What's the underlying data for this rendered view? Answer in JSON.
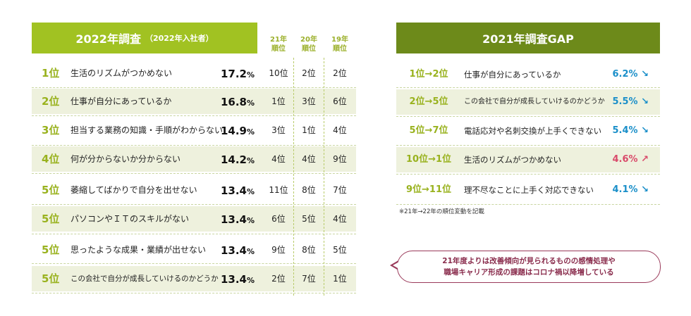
{
  "left": {
    "title": "2022年調査",
    "subtitle": "（2022年入社者）",
    "col_headers": [
      {
        "line1": "21年",
        "line2": "順位"
      },
      {
        "line1": "20年",
        "line2": "順位"
      },
      {
        "line1": "19年",
        "line2": "順位"
      }
    ],
    "rows": [
      {
        "rank": "1位",
        "label": "生活のリズムがつかめない",
        "pct": "17.2",
        "unit": "%",
        "y21": "10位",
        "y20": "2位",
        "y19": "2位"
      },
      {
        "rank": "2位",
        "label": "仕事が自分にあっているか",
        "pct": "16.8",
        "unit": "%",
        "y21": "1位",
        "y20": "3位",
        "y19": "6位"
      },
      {
        "rank": "3位",
        "label": "担当する業務の知識・手順がわからない",
        "pct": "14.9",
        "unit": "%",
        "y21": "3位",
        "y20": "1位",
        "y19": "4位"
      },
      {
        "rank": "4位",
        "label": "何が分からないか分からない",
        "pct": "14.2",
        "unit": "%",
        "y21": "4位",
        "y20": "4位",
        "y19": "9位"
      },
      {
        "rank": "5位",
        "label": "萎縮してばかりで自分を出せない",
        "pct": "13.4",
        "unit": "%",
        "y21": "11位",
        "y20": "8位",
        "y19": "7位"
      },
      {
        "rank": "5位",
        "label": "パソコンやＩＴのスキルがない",
        "pct": "13.4",
        "unit": "%",
        "y21": "6位",
        "y20": "5位",
        "y19": "4位"
      },
      {
        "rank": "5位",
        "label": "思ったような成果・業績が出せない",
        "pct": "13.4",
        "unit": "%",
        "y21": "9位",
        "y20": "8位",
        "y19": "5位"
      },
      {
        "rank": "5位",
        "label": "この会社で自分が成長していけるのかどうか",
        "pct": "13.4",
        "unit": "%",
        "y21": "2位",
        "y20": "7位",
        "y19": "1位"
      }
    ]
  },
  "right": {
    "title": "2021年調査GAP",
    "rows": [
      {
        "rank": "1位→2位",
        "label": "仕事が自分にあっているか",
        "gap": "6.2% ↘",
        "color": "#1a8fc9"
      },
      {
        "rank": "2位→5位",
        "label": "この会社で自分が成長していけるのかどうか",
        "gap": "5.5% ↘",
        "color": "#1a8fc9"
      },
      {
        "rank": "5位→7位",
        "label": "電話応対や名刺交換が上手くできない",
        "gap": "5.4% ↘",
        "color": "#1a8fc9"
      },
      {
        "rank": "10位→1位",
        "label": "生活のリズムがつかめない",
        "gap": "4.6% ↗",
        "color": "#d94a6a"
      },
      {
        "rank": "9位→11位",
        "label": "理不尽なことに上手く対応できない",
        "gap": "4.1% ↘",
        "color": "#1a8fc9"
      }
    ],
    "note": "※21年→22年の順位変動を記載",
    "bubble_line1": "21年度よりは改善傾向が見られるものの感情処理や",
    "bubble_line2": "職場キャリア形成の課題はコロナ禍以降増している"
  }
}
